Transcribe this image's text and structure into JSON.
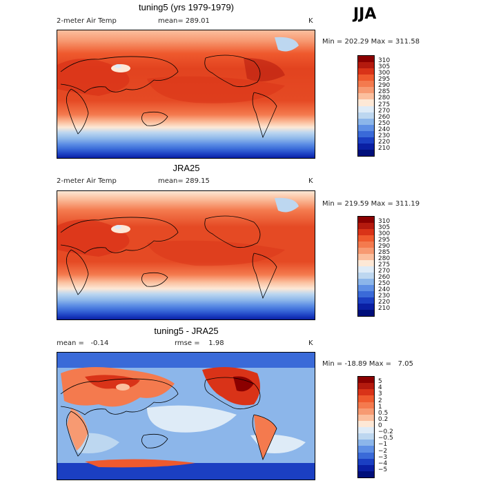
{
  "season": "JJA",
  "panels": [
    {
      "title": "tuning5 (yrs 1979-1979)",
      "left_label": "2-meter Air Temp",
      "center_label": "mean= 289.01",
      "units": "K",
      "minmax": "Min = 202.29 Max = 311.58",
      "colorbar": {
        "labels": [
          "310",
          "305",
          "300",
          "295",
          "290",
          "285",
          "280",
          "275",
          "270",
          "260",
          "250",
          "240",
          "230",
          "220",
          "210"
        ],
        "colors": [
          "#8b0000",
          "#b41a0e",
          "#d93318",
          "#ef5a2e",
          "#f47a4e",
          "#f79a72",
          "#fbbf9e",
          "#fde8d6",
          "#deebf7",
          "#bdd7f0",
          "#8cb6ea",
          "#5e8fe5",
          "#3a6ad8",
          "#1b3fc2",
          "#0a1fa3",
          "#000f7a"
        ]
      }
    },
    {
      "title": "JRA25",
      "left_label": "2-meter Air Temp",
      "center_label": "mean= 289.15",
      "units": "K",
      "minmax": "Min = 219.59 Max = 311.19",
      "colorbar": {
        "labels": [
          "310",
          "305",
          "300",
          "295",
          "290",
          "285",
          "280",
          "275",
          "270",
          "260",
          "250",
          "240",
          "230",
          "220",
          "210"
        ],
        "colors": [
          "#8b0000",
          "#b41a0e",
          "#d93318",
          "#ef5a2e",
          "#f47a4e",
          "#f79a72",
          "#fbbf9e",
          "#fde8d6",
          "#deebf7",
          "#bdd7f0",
          "#8cb6ea",
          "#5e8fe5",
          "#3a6ad8",
          "#1b3fc2",
          "#0a1fa3",
          "#000f7a"
        ]
      }
    },
    {
      "title": "tuning5 - JRA25",
      "left_label": "mean =   -0.14",
      "center_label": "rmse =    1.98",
      "units": "K",
      "minmax": "Min = -18.89 Max =   7.05",
      "colorbar": {
        "labels": [
          "5",
          "4",
          "3",
          "2",
          "1",
          "0.5",
          "0.2",
          "0",
          "−0.2",
          "−0.5",
          "−1",
          "−2",
          "−3",
          "−4",
          "−5"
        ],
        "colors": [
          "#8b0000",
          "#b41a0e",
          "#d93318",
          "#ef5a2e",
          "#f47a4e",
          "#f79a72",
          "#fbbf9e",
          "#fde8d6",
          "#deebf7",
          "#bdd7f0",
          "#8cb6ea",
          "#5e8fe5",
          "#3a6ad8",
          "#1b3fc2",
          "#0a1fa3",
          "#000f7a"
        ]
      }
    }
  ]
}
